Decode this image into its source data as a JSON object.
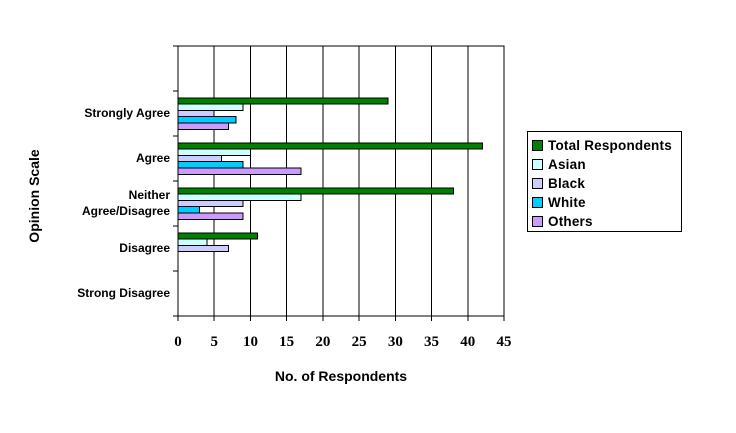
{
  "chart_data": {
    "type": "bar",
    "orientation": "horizontal",
    "title": "",
    "xlabel": "No. of Respondents",
    "ylabel": "Opinion Scale",
    "categories": [
      "Strongly Agree",
      "Agree",
      "Neither Agree/Disagree",
      "Disagree",
      "Strong Disagree"
    ],
    "series": [
      {
        "name": "Total Respondents",
        "color": "#008000",
        "values": [
          29,
          42,
          38,
          11,
          0
        ]
      },
      {
        "name": "Asian",
        "color": "#CCFFFF",
        "values": [
          9,
          10,
          17,
          4,
          0
        ]
      },
      {
        "name": "Black",
        "color": "#CCCCFF",
        "values": [
          5,
          6,
          9,
          7,
          0
        ]
      },
      {
        "name": "White",
        "color": "#00CCFF",
        "values": [
          8,
          9,
          3,
          0,
          0
        ]
      },
      {
        "name": "Others",
        "color": "#CC99FF",
        "values": [
          7,
          17,
          9,
          0,
          0
        ]
      }
    ],
    "xlim": [
      0,
      45
    ],
    "x_ticks": [
      0,
      5,
      10,
      15,
      20,
      25,
      30,
      35,
      40,
      45
    ],
    "grid": true,
    "grid_color": "#000000",
    "bar_border_color": "#000000",
    "background_color": "#FFFFFF",
    "legend_position": "right"
  }
}
